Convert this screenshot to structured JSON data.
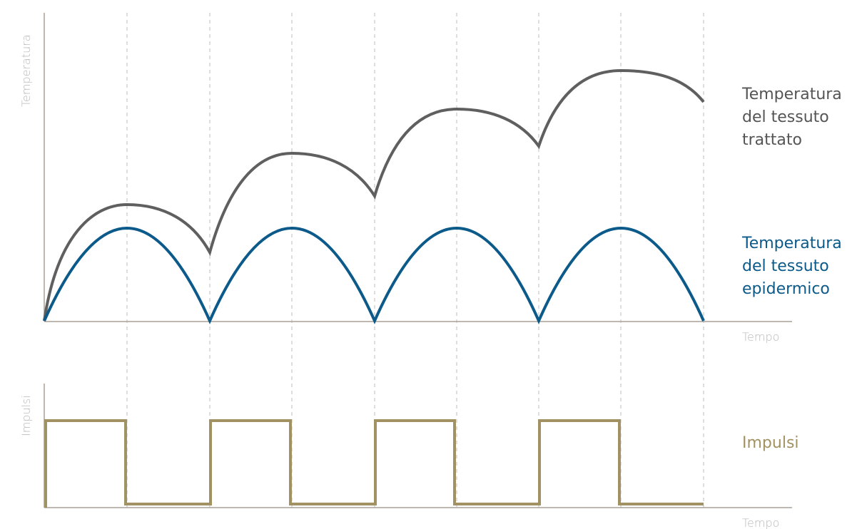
{
  "top_panel": {
    "y_axis_label": "Temperatura",
    "x_axis_label": "Tempo",
    "legend": [
      {
        "lines": [
          "Temperatura",
          "del tessuto",
          "trattato"
        ]
      },
      {
        "lines": [
          "Temperatura",
          "del tessuto",
          "epidermico"
        ]
      }
    ]
  },
  "bottom_panel": {
    "y_axis_label": "Impulsi",
    "x_axis_label": "Tempo",
    "legend": [
      {
        "lines": [
          "Impulsi"
        ]
      }
    ]
  }
}
